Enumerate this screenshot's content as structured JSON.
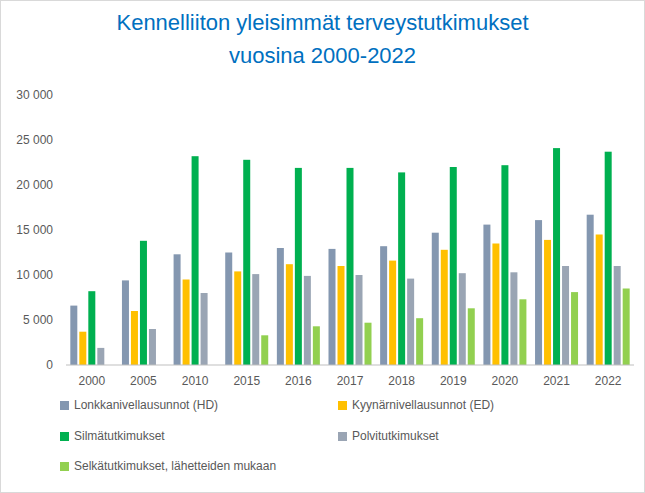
{
  "chart_data": {
    "type": "bar",
    "title": "Kennelliiton yleisimmät terveystutkimukset vuosina 2000-2022",
    "categories": [
      "2000",
      "2005",
      "2010",
      "2015",
      "2016",
      "2017",
      "2018",
      "2019",
      "2020",
      "2021",
      "2022"
    ],
    "series": [
      {
        "name": "Lonkkanivellausunnot (HD)",
        "color": "#8497b0",
        "values": [
          6600,
          9400,
          12300,
          12500,
          13000,
          12900,
          13200,
          14700,
          15600,
          16100,
          16700
        ]
      },
      {
        "name": "Kyynärnivellausunnot (ED)",
        "color": "#ffc000",
        "values": [
          3700,
          6000,
          9500,
          10400,
          11200,
          11000,
          11600,
          12800,
          13500,
          13900,
          14500
        ]
      },
      {
        "name": "Silmätutkimukset",
        "color": "#00b050",
        "values": [
          8200,
          13800,
          23200,
          22800,
          21900,
          21900,
          21400,
          22000,
          22200,
          24100,
          23700
        ]
      },
      {
        "name": "Polvitutkimukset",
        "color": "#9aa5b4",
        "values": [
          1900,
          4000,
          8000,
          10100,
          9900,
          10000,
          9600,
          10200,
          10300,
          11000,
          11000
        ]
      },
      {
        "name": "Selkätutkimukset, lähetteiden mukaan",
        "color": "#92d050",
        "values": [
          null,
          null,
          null,
          3300,
          4300,
          4700,
          5200,
          6300,
          7300,
          8100,
          8500
        ]
      }
    ],
    "ylim": [
      0,
      30000
    ],
    "yticks": [
      0,
      {
        "value": 5000,
        "label": "5 000"
      },
      {
        "value": 10000,
        "label": "10 000"
      },
      {
        "value": 15000,
        "label": "15 000"
      },
      {
        "value": 20000,
        "label": "20 000"
      },
      {
        "value": 25000,
        "label": "25 000"
      },
      {
        "value": 30000,
        "label": "30 000"
      }
    ],
    "grid": false,
    "legend": "bottom"
  }
}
